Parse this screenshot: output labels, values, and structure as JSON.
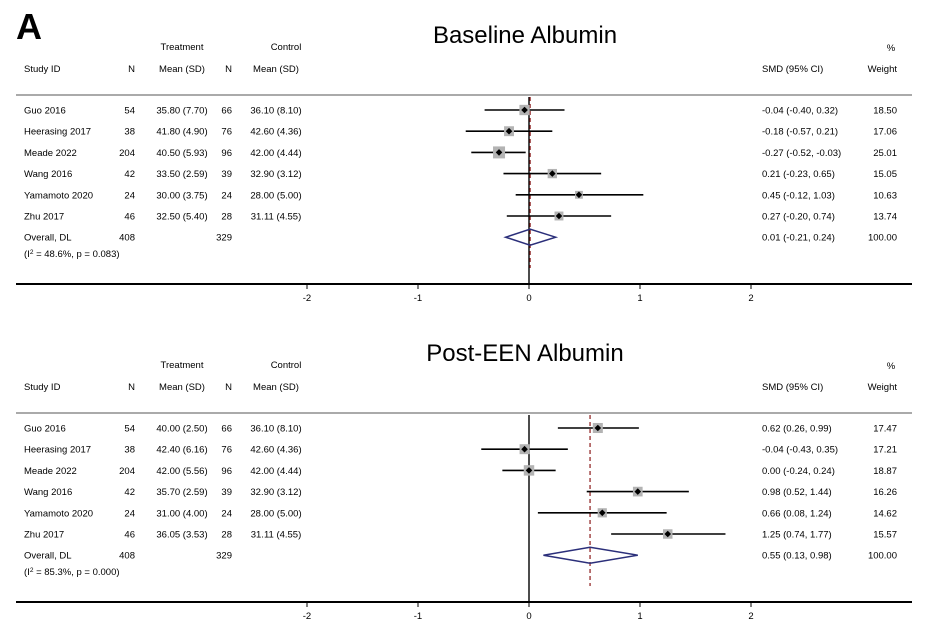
{
  "panel_letter": "A",
  "chart_data": [
    {
      "type": "forest",
      "title": "Baseline Albumin",
      "headers": {
        "group1": "Treatment",
        "group2": "Control",
        "study": "Study ID",
        "n1": "N",
        "mean1": "Mean (SD)",
        "n2": "N",
        "mean2": "Mean (SD)",
        "effect": "SMD (95% CI)",
        "pct": "%",
        "weight": "Weight"
      },
      "studies": [
        {
          "study": "Guo 2016",
          "n1": "54",
          "mean1": "35.80 (7.70)",
          "n2": "66",
          "mean2": "36.10 (8.10)",
          "smd": -0.04,
          "lo": -0.4,
          "hi": 0.32,
          "ci_text": "-0.04 (-0.40, 0.32)",
          "weight": 18.5,
          "weight_text": "18.50"
        },
        {
          "study": "Heerasing 2017",
          "n1": "38",
          "mean1": "41.80 (4.90)",
          "n2": "76",
          "mean2": "42.60 (4.36)",
          "smd": -0.18,
          "lo": -0.57,
          "hi": 0.21,
          "ci_text": "-0.18 (-0.57, 0.21)",
          "weight": 17.06,
          "weight_text": "17.06"
        },
        {
          "study": "Meade 2022",
          "n1": "204",
          "mean1": "40.50 (5.93)",
          "n2": "96",
          "mean2": "42.00 (4.44)",
          "smd": -0.27,
          "lo": -0.52,
          "hi": -0.03,
          "ci_text": "-0.27 (-0.52, -0.03)",
          "weight": 25.01,
          "weight_text": "25.01"
        },
        {
          "study": "Wang 2016",
          "n1": "42",
          "mean1": "33.50 (2.59)",
          "n2": "39",
          "mean2": "32.90 (3.12)",
          "smd": 0.21,
          "lo": -0.23,
          "hi": 0.65,
          "ci_text": "0.21 (-0.23, 0.65)",
          "weight": 15.05,
          "weight_text": "15.05"
        },
        {
          "study": "Yamamoto 2020",
          "n1": "24",
          "mean1": "30.00 (3.75)",
          "n2": "24",
          "mean2": "28.00 (5.00)",
          "smd": 0.45,
          "lo": -0.12,
          "hi": 1.03,
          "ci_text": "0.45 (-0.12, 1.03)",
          "weight": 10.63,
          "weight_text": "10.63"
        },
        {
          "study": "Zhu 2017",
          "n1": "46",
          "mean1": "32.50 (5.40)",
          "n2": "28",
          "mean2": "31.11 (4.55)",
          "smd": 0.27,
          "lo": -0.2,
          "hi": 0.74,
          "ci_text": "0.27 (-0.20, 0.74)",
          "weight": 13.74,
          "weight_text": "13.74"
        }
      ],
      "overall": {
        "label": "Overall, DL",
        "n1": "408",
        "n2": "329",
        "smd": 0.01,
        "lo": -0.21,
        "hi": 0.24,
        "ci_text": "0.01 (-0.21, 0.24)",
        "weight_text": "100.00"
      },
      "heterogeneity": {
        "i2": "48.6%",
        "p": "0.083"
      },
      "x_ticks": [
        -2,
        -1,
        0,
        1,
        2
      ],
      "x_range": [
        -2.5,
        2.5
      ]
    },
    {
      "type": "forest",
      "title": "Post-EEN Albumin",
      "headers": {
        "group1": "Treatment",
        "group2": "Control",
        "study": "Study ID",
        "n1": "N",
        "mean1": "Mean (SD)",
        "n2": "N",
        "mean2": "Mean (SD)",
        "effect": "SMD (95% CI)",
        "pct": "%",
        "weight": "Weight"
      },
      "studies": [
        {
          "study": "Guo 2016",
          "n1": "54",
          "mean1": "40.00 (2.50)",
          "n2": "66",
          "mean2": "36.10 (8.10)",
          "smd": 0.62,
          "lo": 0.26,
          "hi": 0.99,
          "ci_text": "0.62 (0.26, 0.99)",
          "weight": 17.47,
          "weight_text": "17.47"
        },
        {
          "study": "Heerasing 2017",
          "n1": "38",
          "mean1": "42.40 (6.16)",
          "n2": "76",
          "mean2": "42.60 (4.36)",
          "smd": -0.04,
          "lo": -0.43,
          "hi": 0.35,
          "ci_text": "-0.04 (-0.43, 0.35)",
          "weight": 17.21,
          "weight_text": "17.21"
        },
        {
          "study": "Meade 2022",
          "n1": "204",
          "mean1": "42.00 (5.56)",
          "n2": "96",
          "mean2": "42.00 (4.44)",
          "smd": 0.0,
          "lo": -0.24,
          "hi": 0.24,
          "ci_text": "0.00 (-0.24, 0.24)",
          "weight": 18.87,
          "weight_text": "18.87"
        },
        {
          "study": "Wang 2016",
          "n1": "42",
          "mean1": "35.70 (2.59)",
          "n2": "39",
          "mean2": "32.90 (3.12)",
          "smd": 0.98,
          "lo": 0.52,
          "hi": 1.44,
          "ci_text": "0.98 (0.52, 1.44)",
          "weight": 16.26,
          "weight_text": "16.26"
        },
        {
          "study": "Yamamoto 2020",
          "n1": "24",
          "mean1": "31.00 (4.00)",
          "n2": "24",
          "mean2": "28.00 (5.00)",
          "smd": 0.66,
          "lo": 0.08,
          "hi": 1.24,
          "ci_text": "0.66 (0.08, 1.24)",
          "weight": 14.62,
          "weight_text": "14.62"
        },
        {
          "study": "Zhu 2017",
          "n1": "46",
          "mean1": "36.05 (3.53)",
          "n2": "28",
          "mean2": "31.11 (4.55)",
          "smd": 1.25,
          "lo": 0.74,
          "hi": 1.77,
          "ci_text": "1.25 (0.74, 1.77)",
          "weight": 15.57,
          "weight_text": "15.57"
        }
      ],
      "overall": {
        "label": "Overall, DL",
        "n1": "408",
        "n2": "329",
        "smd": 0.55,
        "lo": 0.13,
        "hi": 0.98,
        "ci_text": "0.55 (0.13, 0.98)",
        "weight_text": "100.00"
      },
      "heterogeneity": {
        "i2": "85.3%",
        "p": "0.000"
      },
      "x_ticks": [
        -2,
        -1,
        0,
        1,
        2
      ],
      "x_range": [
        -2.5,
        2.5
      ]
    }
  ],
  "colors": {
    "ci_line": "#000000",
    "weight_box": "#b3b3b3",
    "point": "#000000",
    "overall_diamond": "#2b2f7a",
    "overall_line": "#8b1a1a",
    "axis": "#000000",
    "separator": "#555555"
  }
}
